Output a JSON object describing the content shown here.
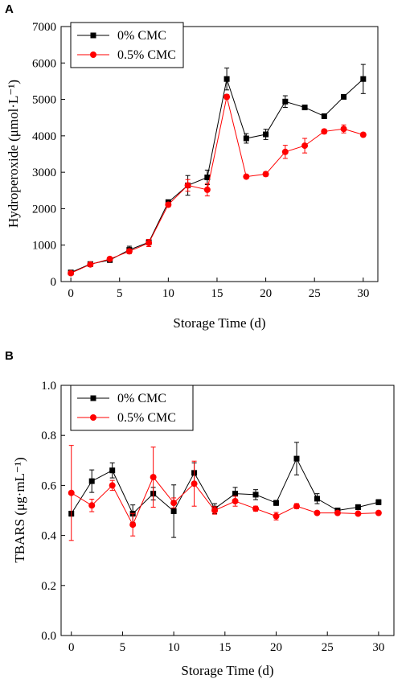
{
  "chart_data": [
    {
      "type": "line",
      "panel": "A",
      "xlabel": "Storage Time (d)",
      "ylabel": "Hydroperoxide (μmol·L⁻¹)",
      "xlim": [
        -1,
        31.5
      ],
      "ylim": [
        0,
        7000
      ],
      "xticks": [
        0,
        5,
        10,
        15,
        20,
        25,
        30
      ],
      "yticks": [
        0,
        1000,
        2000,
        3000,
        4000,
        5000,
        6000,
        7000
      ],
      "legend_position": "top-left",
      "x": [
        0,
        2,
        4,
        6,
        8,
        10,
        12,
        14,
        16,
        18,
        20,
        22,
        24,
        26,
        28,
        30
      ],
      "series": [
        {
          "name": "0% CMC",
          "color": "#000000",
          "marker": "square",
          "values": [
            250,
            480,
            590,
            870,
            1080,
            2180,
            2640,
            2860,
            5560,
            3930,
            4040,
            4940,
            4780,
            4540,
            5070,
            5560
          ],
          "errors": [
            40,
            40,
            40,
            100,
            70,
            50,
            270,
            200,
            300,
            130,
            140,
            160,
            50,
            60,
            50,
            400
          ]
        },
        {
          "name": "0.5% CMC",
          "color": "#ff0000",
          "marker": "circle",
          "values": [
            230,
            470,
            620,
            830,
            1060,
            2110,
            2640,
            2520,
            5070,
            2880,
            2950,
            3560,
            3730,
            4120,
            4190,
            4030
          ],
          "errors": [
            40,
            40,
            40,
            60,
            100,
            60,
            160,
            170,
            60,
            50,
            60,
            180,
            200,
            60,
            110,
            50
          ]
        }
      ]
    },
    {
      "type": "line",
      "panel": "B",
      "xlabel": "Storage Time (d)",
      "ylabel": "TBARS (μg·mL⁻¹)",
      "xlim": [
        -1,
        31.5
      ],
      "ylim": [
        0,
        1.0
      ],
      "xticks": [
        0,
        5,
        10,
        15,
        20,
        25,
        30
      ],
      "yticks": [
        0.0,
        0.2,
        0.4,
        0.6,
        0.8,
        1.0
      ],
      "legend_position": "top-left",
      "x": [
        0,
        2,
        4,
        6,
        8,
        10,
        12,
        14,
        16,
        18,
        20,
        22,
        24,
        26,
        28,
        30
      ],
      "series": [
        {
          "name": "0% CMC",
          "color": "#000000",
          "marker": "square",
          "values": [
            0.487,
            0.617,
            0.66,
            0.487,
            0.567,
            0.497,
            0.65,
            0.507,
            0.567,
            0.563,
            0.53,
            0.707,
            0.547,
            0.5,
            0.513,
            0.533
          ],
          "errors": [
            0.01,
            0.045,
            0.03,
            0.035,
            0.025,
            0.105,
            0.04,
            0.02,
            0.025,
            0.02,
            0.01,
            0.065,
            0.02,
            0.005,
            0.01,
            0.01
          ]
        },
        {
          "name": "0.5% CMC",
          "color": "#ff0000",
          "marker": "circle",
          "values": [
            0.57,
            0.52,
            0.6,
            0.443,
            0.633,
            0.53,
            0.607,
            0.5,
            0.537,
            0.507,
            0.477,
            0.517,
            0.49,
            0.49,
            0.487,
            0.49
          ],
          "errors": [
            0.19,
            0.025,
            0.02,
            0.045,
            0.12,
            0.02,
            0.09,
            0.015,
            0.02,
            0.01,
            0.015,
            0.01,
            0.005,
            0.005,
            0.005,
            0.005
          ]
        }
      ]
    }
  ]
}
